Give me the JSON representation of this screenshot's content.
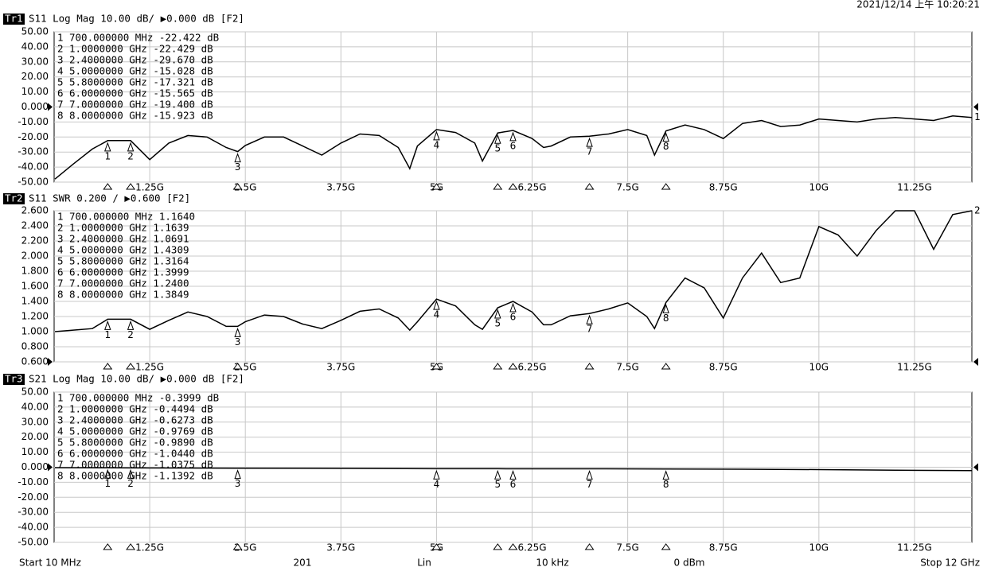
{
  "status": {
    "datetime": "2021/12/14 上午 10:20:21"
  },
  "footer": {
    "start": "Start 10 MHz",
    "points": "201",
    "sweep": "Lin",
    "ifbw": "10 kHz",
    "power": "0 dBm",
    "stop": "Stop 12 GHz"
  },
  "chart_data": [
    {
      "type": "line",
      "trace": "Tr1",
      "title": "S11 Log Mag 10.00 dB/ ▶0.000 dB [F2]",
      "ref_label": "1",
      "ref_value": 0,
      "xlim": [
        0,
        12
      ],
      "xticks": [
        {
          "value": 1.25,
          "label": "1.25G"
        },
        {
          "value": 2.5,
          "label": "2.5G"
        },
        {
          "value": 3.75,
          "label": "3.75G"
        },
        {
          "value": 5,
          "label": "5G"
        },
        {
          "value": 6.25,
          "label": "6.25G"
        },
        {
          "value": 7.5,
          "label": "7.5G"
        },
        {
          "value": 8.75,
          "label": "8.75G"
        },
        {
          "value": 10,
          "label": "10G"
        },
        {
          "value": 11.25,
          "label": "11.25G"
        }
      ],
      "ylim": [
        -50,
        50
      ],
      "yticks": [
        {
          "value": 50,
          "label": "50.00"
        },
        {
          "value": 40,
          "label": "40.00"
        },
        {
          "value": 30,
          "label": "30.00"
        },
        {
          "value": 20,
          "label": "20.00"
        },
        {
          "value": 10,
          "label": "10.00"
        },
        {
          "value": 0,
          "label": "0.000"
        },
        {
          "value": -10,
          "label": "-10.00"
        },
        {
          "value": -20,
          "label": "-20.00"
        },
        {
          "value": -30,
          "label": "-30.00"
        },
        {
          "value": -40,
          "label": "-40.00"
        },
        {
          "value": -50,
          "label": "-50.00"
        }
      ],
      "grid": true,
      "color": "#000000",
      "x": [
        0.01,
        0.25,
        0.5,
        0.7,
        1,
        1.25,
        1.5,
        1.75,
        2,
        2.25,
        2.4,
        2.5,
        2.75,
        3,
        3.25,
        3.5,
        3.75,
        4,
        4.25,
        4.5,
        4.65,
        4.75,
        5,
        5.25,
        5.5,
        5.6,
        5.8,
        6,
        6.25,
        6.4,
        6.5,
        6.75,
        7,
        7.25,
        7.5,
        7.75,
        7.85,
        8,
        8.25,
        8.5,
        8.75,
        9,
        9.25,
        9.5,
        9.75,
        10,
        10.25,
        10.5,
        10.75,
        11,
        11.25,
        11.5,
        11.75,
        12
      ],
      "values": [
        -48,
        -38,
        -28,
        -22.4,
        -22.4,
        -35,
        -24,
        -19,
        -20,
        -27,
        -29.7,
        -25.6,
        -20,
        -20,
        -26,
        -32,
        -24,
        -18,
        -19,
        -27,
        -41,
        -26,
        -15,
        -17,
        -24,
        -36,
        -17.3,
        -15.6,
        -21,
        -27,
        -26,
        -20,
        -19.4,
        -18,
        -15,
        -19,
        -32,
        -15.9,
        -12,
        -15,
        -21,
        -11,
        -9,
        -13,
        -12,
        -8,
        -9,
        -10,
        -8,
        -7,
        -8,
        -9,
        -6,
        -7
      ],
      "markers": [
        {
          "id": "1",
          "x": 0.7,
          "y": -22.422,
          "text": "700.000000 MHz -22.422 dB"
        },
        {
          "id": "2",
          "x": 1,
          "y": -22.429,
          "text": "1.0000000 GHz -22.429 dB"
        },
        {
          "id": "3",
          "x": 2.4,
          "y": -29.67,
          "text": "2.4000000 GHz -29.670 dB"
        },
        {
          "id": "4",
          "x": 5,
          "y": -15.028,
          "text": "5.0000000 GHz -15.028 dB"
        },
        {
          "id": "5",
          "x": 5.8,
          "y": -17.321,
          "text": "5.8000000 GHz -17.321 dB"
        },
        {
          "id": "6",
          "x": 6,
          "y": -15.565,
          "text": "6.0000000 GHz -15.565 dB"
        },
        {
          "id": "7",
          "x": 7,
          "y": -19.4,
          "text": "7.0000000 GHz -19.400 dB"
        },
        {
          "id": "8",
          "x": 8,
          "y": -15.923,
          "text": "8.0000000 GHz -15.923 dB"
        }
      ]
    },
    {
      "type": "line",
      "trace": "Tr2",
      "title": "S11 SWR 0.200 / ▶0.600  [F2]",
      "ref_label": "2",
      "ref_value": 0.6,
      "xlim": [
        0,
        12
      ],
      "xticks": [
        {
          "value": 1.25,
          "label": "1.25G"
        },
        {
          "value": 2.5,
          "label": "2.5G"
        },
        {
          "value": 3.75,
          "label": "3.75G"
        },
        {
          "value": 5,
          "label": "5G"
        },
        {
          "value": 6.25,
          "label": "6.25G"
        },
        {
          "value": 7.5,
          "label": "7.5G"
        },
        {
          "value": 8.75,
          "label": "8.75G"
        },
        {
          "value": 10,
          "label": "10G"
        },
        {
          "value": 11.25,
          "label": "11.25G"
        }
      ],
      "ylim": [
        0.6,
        2.6
      ],
      "yticks": [
        {
          "value": 2.6,
          "label": "2.600"
        },
        {
          "value": 2.4,
          "label": "2.400"
        },
        {
          "value": 2.2,
          "label": "2.200"
        },
        {
          "value": 2,
          "label": "2.000"
        },
        {
          "value": 1.8,
          "label": "1.800"
        },
        {
          "value": 1.6,
          "label": "1.600"
        },
        {
          "value": 1.4,
          "label": "1.400"
        },
        {
          "value": 1.2,
          "label": "1.200"
        },
        {
          "value": 1,
          "label": "1.000"
        },
        {
          "value": 0.8,
          "label": "0.800"
        },
        {
          "value": 0.6,
          "label": "0.600"
        }
      ],
      "grid": true,
      "color": "#000000",
      "x": [
        0.01,
        0.25,
        0.5,
        0.7,
        1,
        1.25,
        1.5,
        1.75,
        2,
        2.25,
        2.4,
        2.5,
        2.75,
        3,
        3.25,
        3.5,
        3.75,
        4,
        4.25,
        4.5,
        4.65,
        4.75,
        5,
        5.25,
        5.5,
        5.6,
        5.8,
        6,
        6.25,
        6.4,
        6.5,
        6.75,
        7,
        7.25,
        7.5,
        7.75,
        7.85,
        8,
        8.25,
        8.5,
        8.75,
        9,
        9.25,
        9.5,
        9.75,
        10,
        10.25,
        10.5,
        10.75,
        11,
        11.25,
        11.5,
        11.75,
        12
      ],
      "values": [
        1.0,
        1.02,
        1.04,
        1.164,
        1.164,
        1.03,
        1.15,
        1.26,
        1.2,
        1.07,
        1.069,
        1.13,
        1.22,
        1.2,
        1.1,
        1.04,
        1.15,
        1.27,
        1.3,
        1.18,
        1.02,
        1.13,
        1.431,
        1.34,
        1.09,
        1.03,
        1.316,
        1.4,
        1.26,
        1.09,
        1.09,
        1.21,
        1.24,
        1.3,
        1.38,
        1.2,
        1.04,
        1.385,
        1.71,
        1.58,
        1.18,
        1.71,
        2.04,
        1.65,
        1.71,
        2.39,
        2.28,
        2.0,
        2.34,
        2.6,
        2.6,
        2.09,
        2.55,
        2.6
      ],
      "markers": [
        {
          "id": "1",
          "x": 0.7,
          "y": 1.164,
          "text": "700.000000 MHz  1.1640"
        },
        {
          "id": "2",
          "x": 1,
          "y": 1.1639,
          "text": "1.0000000 GHz  1.1639"
        },
        {
          "id": "3",
          "x": 2.4,
          "y": 1.0691,
          "text": "2.4000000 GHz  1.0691"
        },
        {
          "id": "4",
          "x": 5,
          "y": 1.4309,
          "text": "5.0000000 GHz  1.4309"
        },
        {
          "id": "5",
          "x": 5.8,
          "y": 1.3164,
          "text": "5.8000000 GHz  1.3164"
        },
        {
          "id": "6",
          "x": 6,
          "y": 1.3999,
          "text": "6.0000000 GHz  1.3999"
        },
        {
          "id": "7",
          "x": 7,
          "y": 1.24,
          "text": "7.0000000 GHz  1.2400"
        },
        {
          "id": "8",
          "x": 8,
          "y": 1.3849,
          "text": "8.0000000 GHz  1.3849"
        }
      ]
    },
    {
      "type": "line",
      "trace": "Tr3",
      "title": "S21 Log Mag 10.00 dB/ ▶0.000 dB [F2]",
      "ref_value": 0,
      "xlim": [
        0,
        12
      ],
      "xticks": [
        {
          "value": 1.25,
          "label": "1.25G"
        },
        {
          "value": 2.5,
          "label": "2.5G"
        },
        {
          "value": 3.75,
          "label": "3.75G"
        },
        {
          "value": 5,
          "label": "5G"
        },
        {
          "value": 6.25,
          "label": "6.25G"
        },
        {
          "value": 7.5,
          "label": "7.5G"
        },
        {
          "value": 8.75,
          "label": "8.75G"
        },
        {
          "value": 10,
          "label": "10G"
        },
        {
          "value": 11.25,
          "label": "11.25G"
        }
      ],
      "ylim": [
        -50,
        50
      ],
      "yticks": [
        {
          "value": 50,
          "label": "50.00"
        },
        {
          "value": 40,
          "label": "40.00"
        },
        {
          "value": 30,
          "label": "30.00"
        },
        {
          "value": 20,
          "label": "20.00"
        },
        {
          "value": 10,
          "label": "10.00"
        },
        {
          "value": 0,
          "label": "0.000"
        },
        {
          "value": -10,
          "label": "-10.00"
        },
        {
          "value": -20,
          "label": "-20.00"
        },
        {
          "value": -30,
          "label": "-30.00"
        },
        {
          "value": -40,
          "label": "-40.00"
        },
        {
          "value": -50,
          "label": "-50.00"
        }
      ],
      "grid": true,
      "color": "#000000",
      "x": [
        0.01,
        0.7,
        1,
        2.4,
        5,
        5.8,
        6,
        7,
        8,
        9,
        10,
        11,
        12
      ],
      "values": [
        -0.3,
        -0.4,
        -0.45,
        -0.63,
        -0.98,
        -0.99,
        -1.04,
        -1.04,
        -1.14,
        -1.3,
        -1.6,
        -2.0,
        -2.2
      ],
      "markers": [
        {
          "id": "1",
          "x": 0.7,
          "y": -0.3999,
          "text": "700.000000 MHz -0.3999 dB"
        },
        {
          "id": "2",
          "x": 1,
          "y": -0.4494,
          "text": "1.0000000 GHz -0.4494 dB"
        },
        {
          "id": "3",
          "x": 2.4,
          "y": -0.6273,
          "text": "2.4000000 GHz -0.6273 dB"
        },
        {
          "id": "4",
          "x": 5,
          "y": -0.9769,
          "text": "5.0000000 GHz -0.9769 dB"
        },
        {
          "id": "5",
          "x": 5.8,
          "y": -0.989,
          "text": "5.8000000 GHz -0.9890 dB"
        },
        {
          "id": "6",
          "x": 6,
          "y": -1.044,
          "text": "6.0000000 GHz -1.0440 dB"
        },
        {
          "id": "7",
          "x": 7,
          "y": -1.0375,
          "text": "7.0000000 GHz -1.0375 dB"
        },
        {
          "id": "8",
          "x": 8,
          "y": -1.1392,
          "text": "8.0000000 GHz -1.1392 dB"
        }
      ]
    }
  ]
}
